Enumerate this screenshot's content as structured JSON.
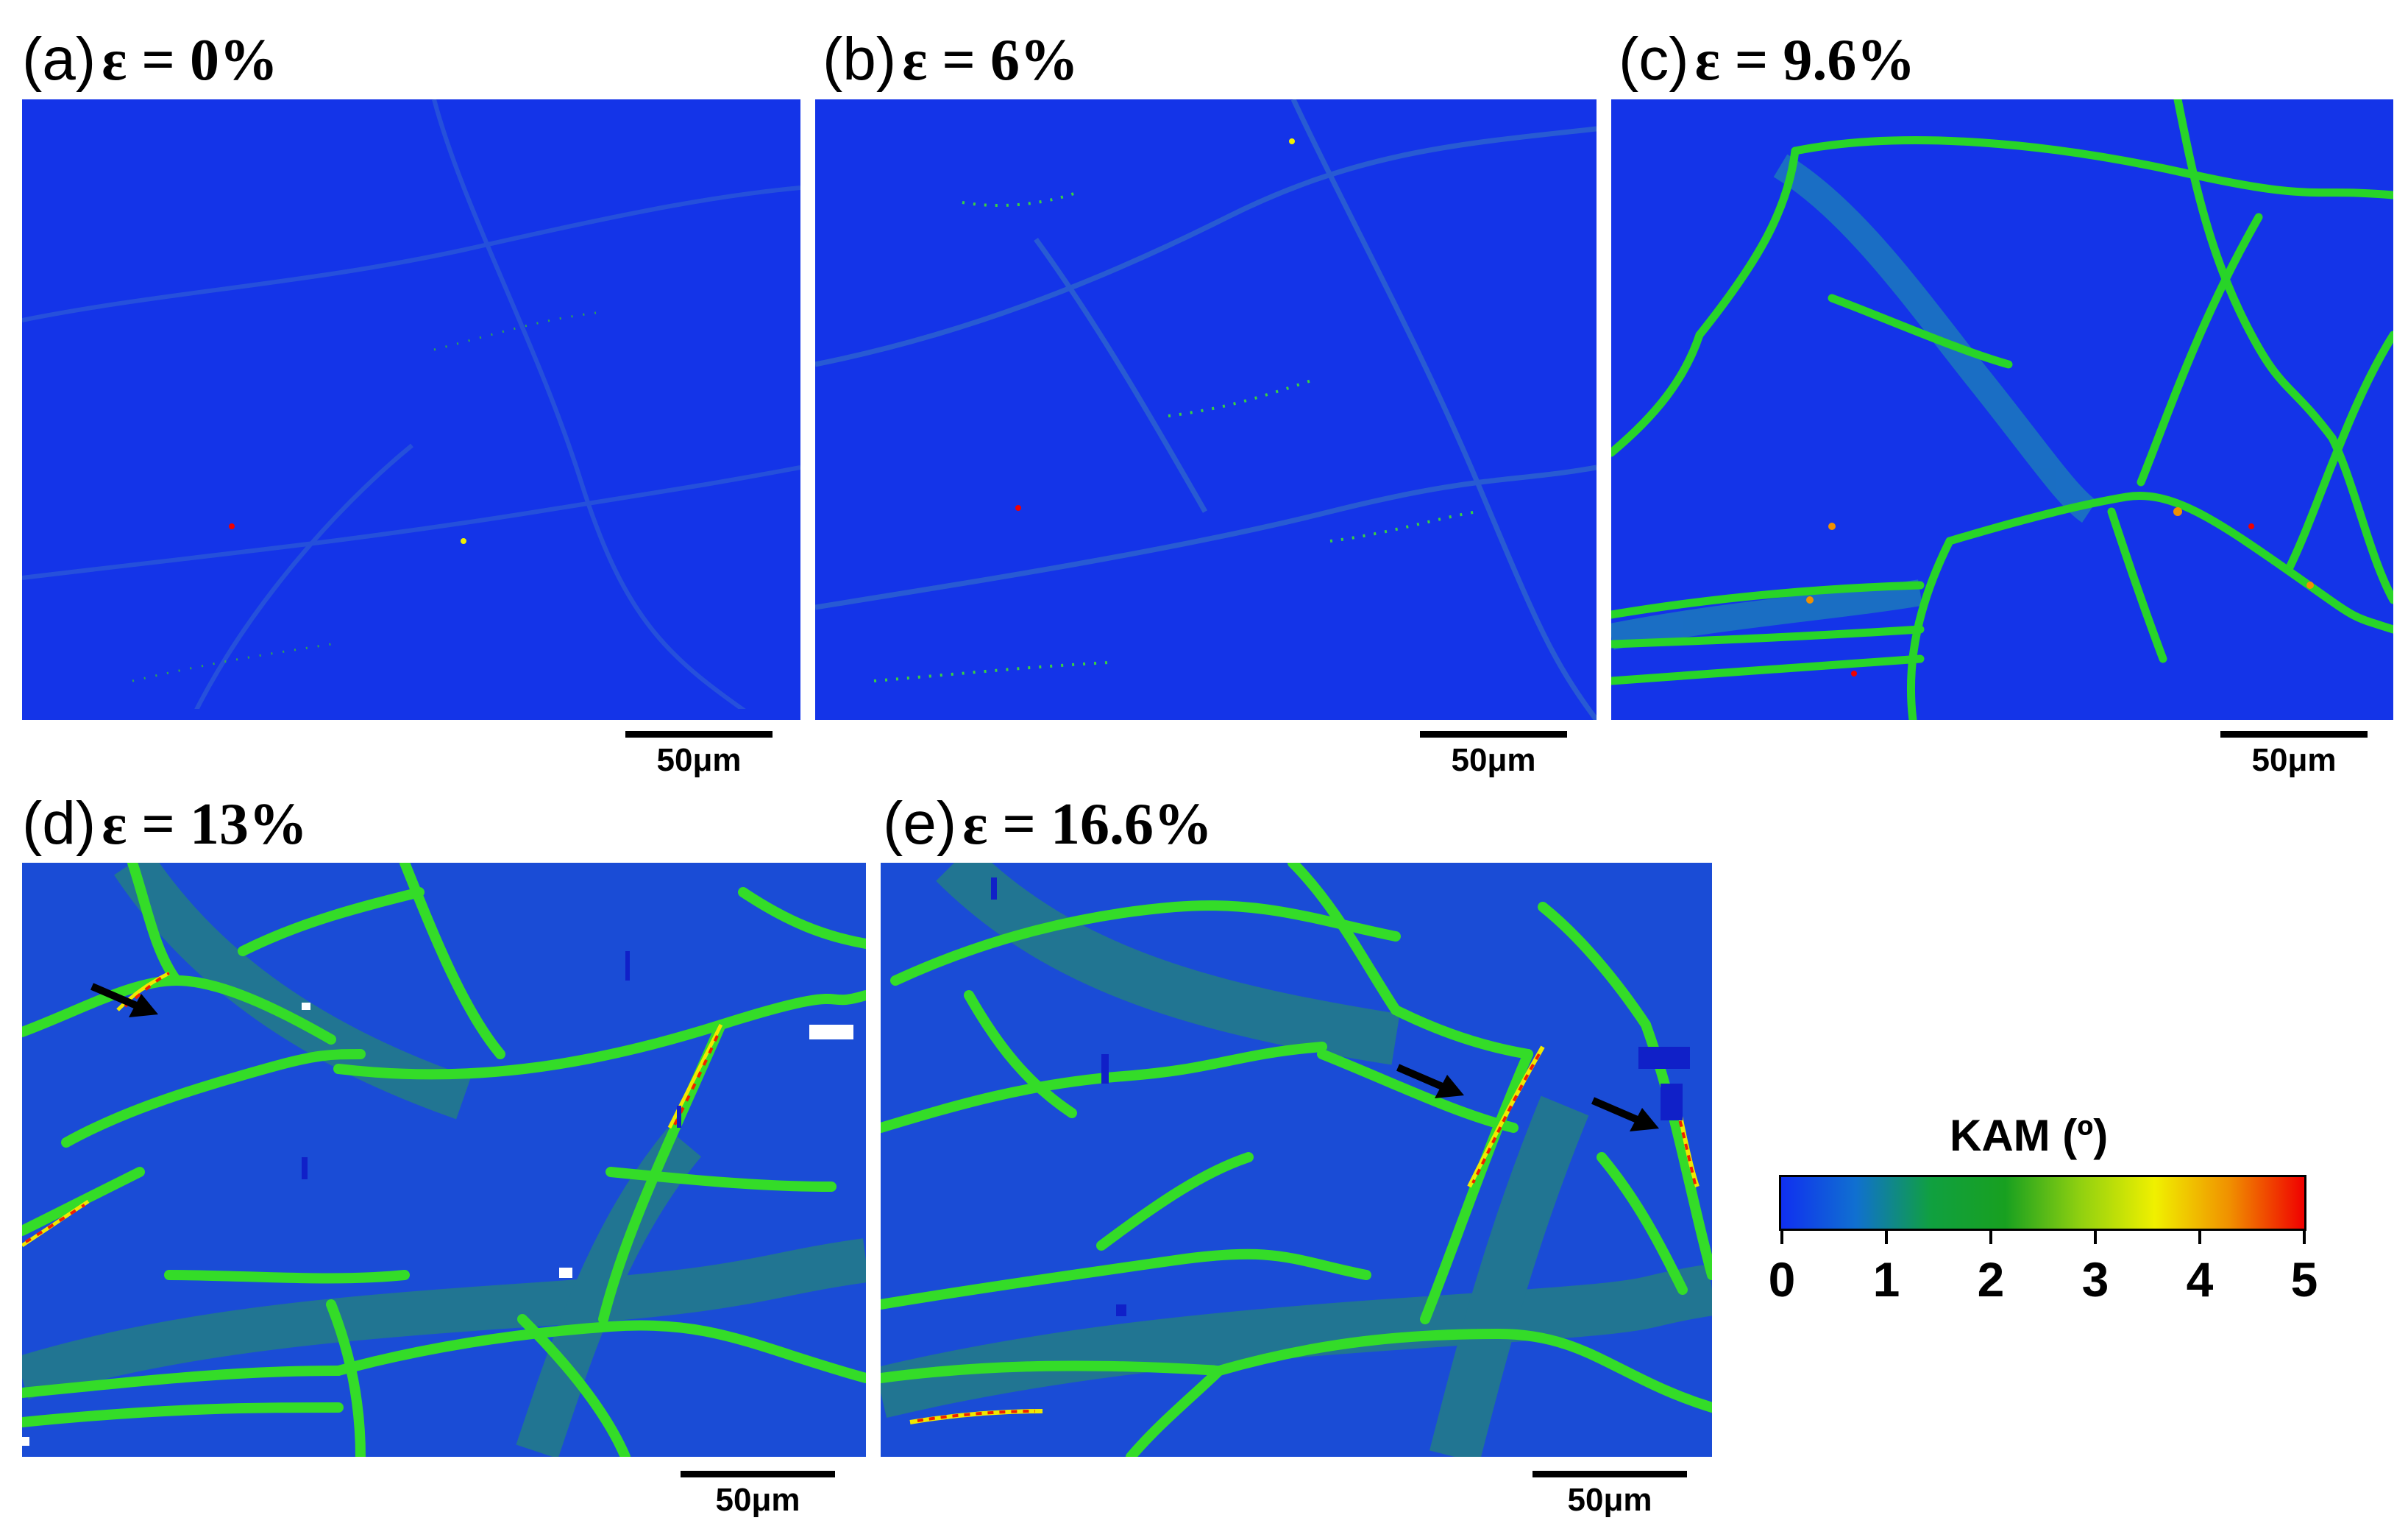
{
  "panels": [
    {
      "letter": "(a)",
      "strain": "ε = 0%",
      "scalebar": "50μm"
    },
    {
      "letter": "(b)",
      "strain": "ε = 6%",
      "scalebar": "50μm"
    },
    {
      "letter": "(c)",
      "strain": "ε = 9.6%",
      "scalebar": "50μm"
    },
    {
      "letter": "(d)",
      "strain": "ε = 13%",
      "scalebar": "50μm"
    },
    {
      "letter": "(e)",
      "strain": "ε = 16.6%",
      "scalebar": "50μm"
    }
  ],
  "colorbar": {
    "title": "KAM (º)",
    "ticks": [
      "0",
      "1",
      "2",
      "3",
      "4",
      "5"
    ],
    "colors": [
      "#1030f0",
      "#1070d0",
      "#10a040",
      "#18a020",
      "#90d010",
      "#f0f000",
      "#f09000",
      "#f00000"
    ]
  },
  "colors": {
    "low": "#1434e8",
    "mid": "#1ee01e",
    "high": "#f00000"
  }
}
